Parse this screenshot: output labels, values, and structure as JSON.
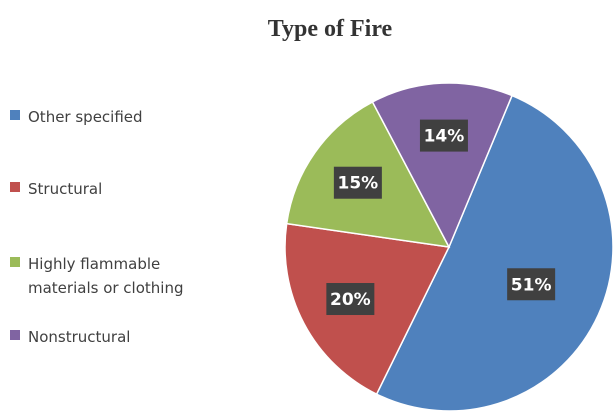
{
  "chart_data": {
    "type": "pie",
    "title": "Type of Fire",
    "categories": [
      "Other specified",
      "Structural",
      "Highly flammable materials or clothing",
      "Nonstructural"
    ],
    "values": [
      51,
      20,
      15,
      14
    ],
    "value_labels": [
      "51%",
      "20%",
      "15%",
      "14%"
    ],
    "colors": [
      "#4f81bd",
      "#c0504d",
      "#9bbb59",
      "#8064a2"
    ],
    "legend": "left"
  }
}
